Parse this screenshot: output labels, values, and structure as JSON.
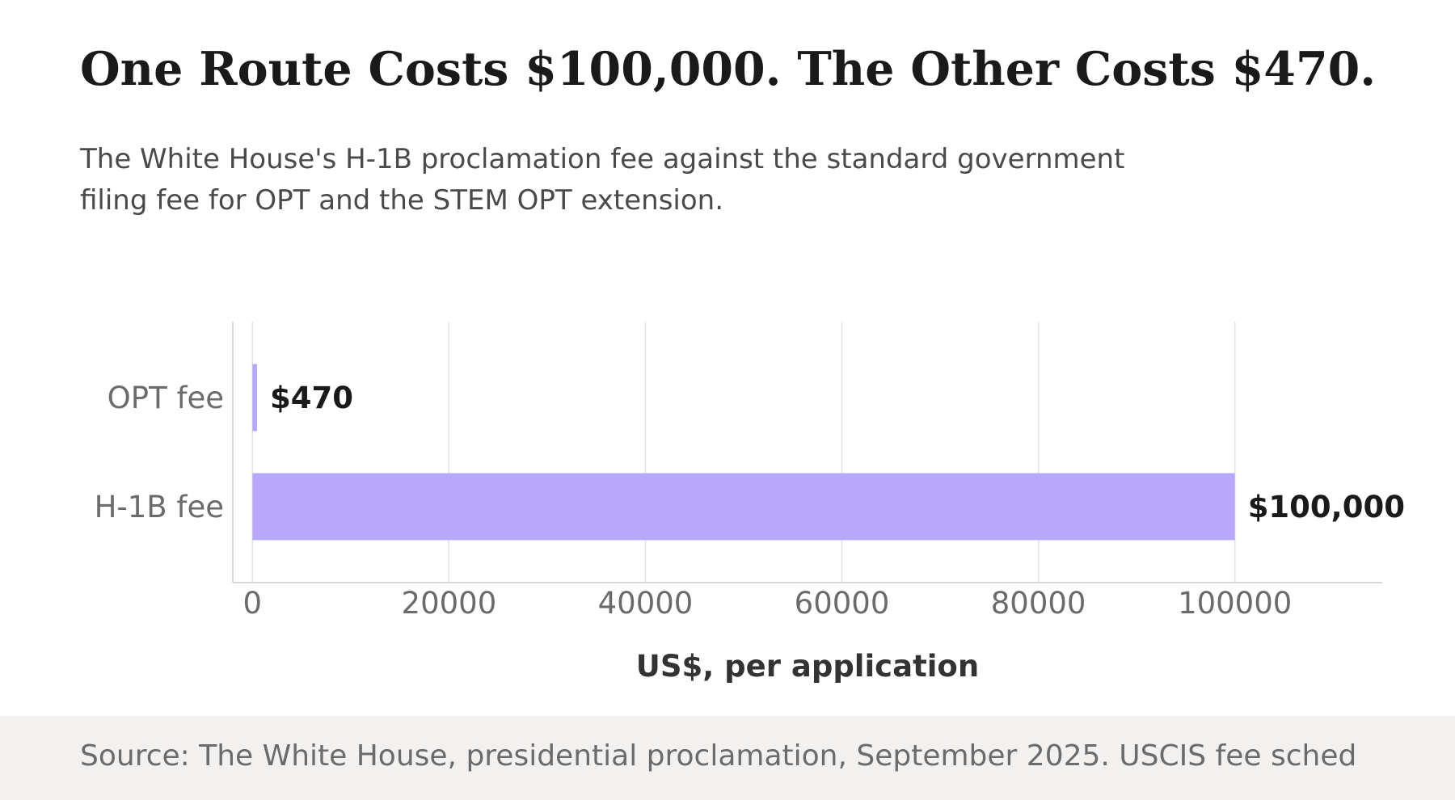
{
  "header": {
    "title": "One Route Costs $100,000. The Other Costs $470.",
    "subtitle": "The White House's H-1B proclamation fee against the standard government filing fee for OPT and the STEM OPT extension."
  },
  "footer": {
    "source": "Source: The White House, presidential proclamation, September 2025. USCIS fee sched"
  },
  "colors": {
    "bar": "#b8a8fc",
    "grid": "#e3e3e3",
    "axis": "#d8d8d8",
    "tick_text": "#6b6b6b",
    "value_text": "#1a1a1a",
    "xlabel_text": "#333333"
  },
  "chart_data": {
    "type": "bar",
    "orientation": "horizontal",
    "categories": [
      "OPT fee",
      "H-1B fee"
    ],
    "values": [
      470,
      100000
    ],
    "value_labels": [
      "$470",
      "$100,000"
    ],
    "xlabel": "US$, per application",
    "xticks": [
      0,
      20000,
      40000,
      60000,
      80000,
      100000
    ],
    "xlim": [
      -2000,
      115000
    ],
    "grid": "vertical"
  }
}
